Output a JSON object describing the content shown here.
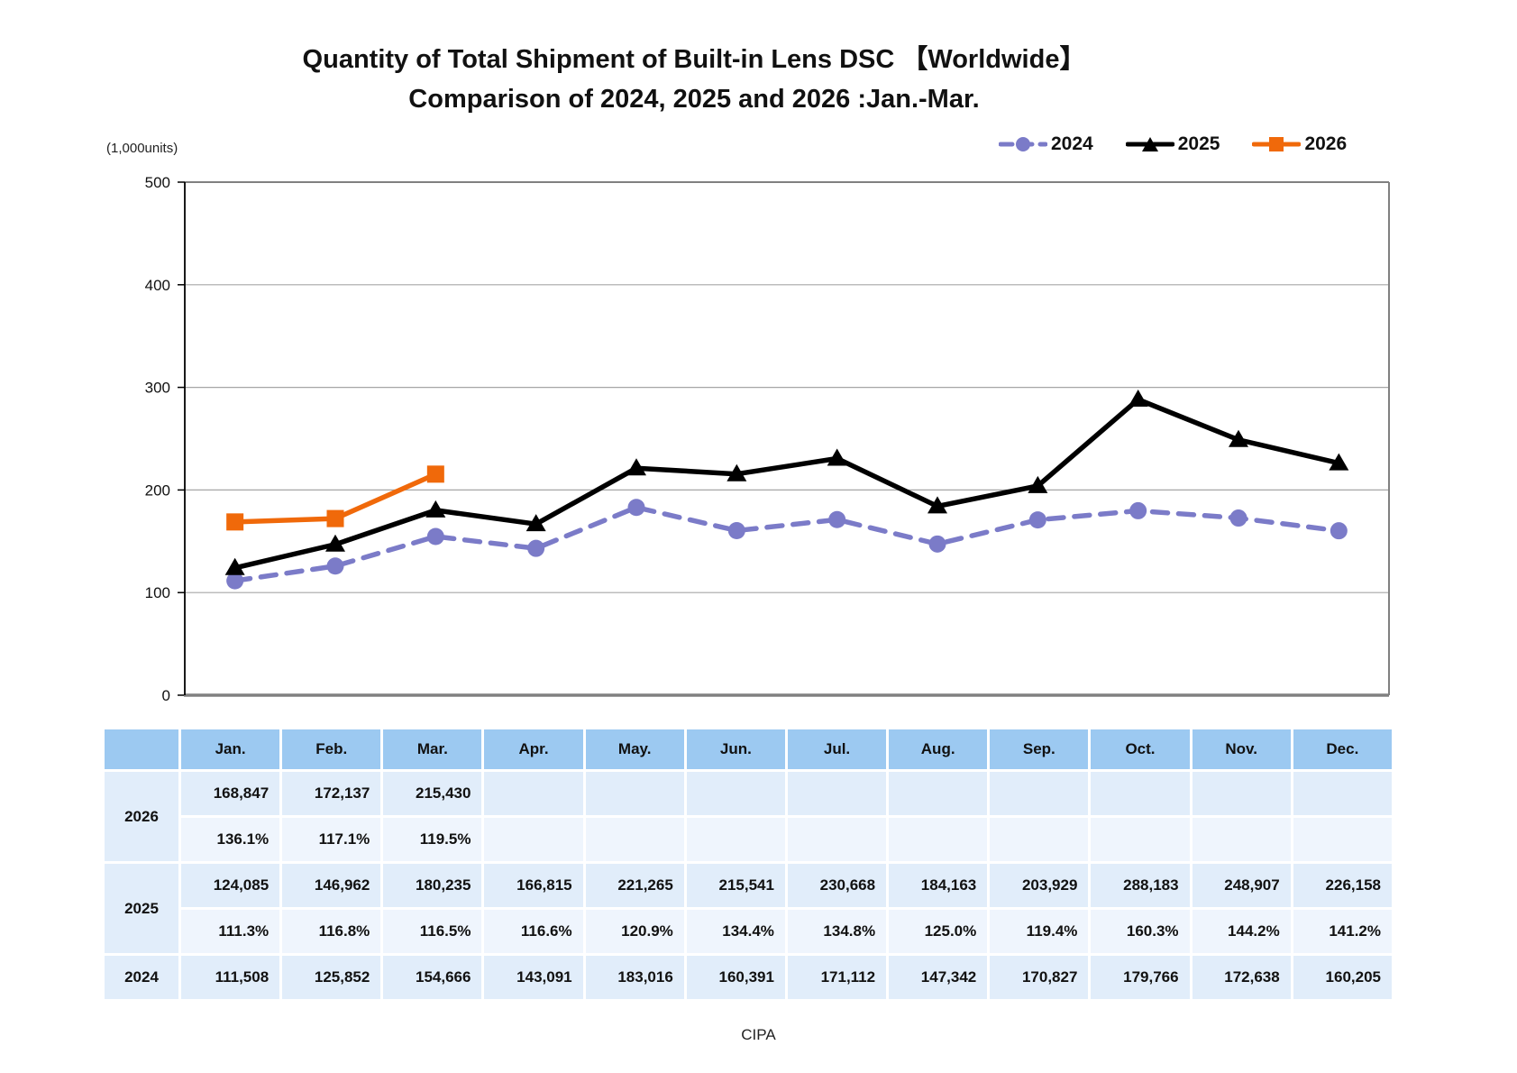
{
  "title": {
    "line1": "Quantity of Total Shipment of Built-in Lens DSC 【Worldwide】",
    "line2": "Comparison of 2024, 2025 and 2026 :Jan.-Mar."
  },
  "footer": {
    "source": "CIPA"
  },
  "legend": [
    {
      "label": "2024",
      "color": "#7B7BC8",
      "marker": "circle",
      "dash": true
    },
    {
      "label": "2025",
      "color": "#000000",
      "marker": "triangle",
      "dash": false
    },
    {
      "label": "2026",
      "color": "#F0690A",
      "marker": "square",
      "dash": false
    }
  ],
  "chart_data": {
    "type": "line",
    "title": "Quantity of Total Shipment of Built-in Lens DSC 【Worldwide】 Comparison of 2024, 2025 and 2026 :Jan.-Mar.",
    "unit_label": "(1,000units)",
    "categories": [
      "Jan.",
      "Feb.",
      "Mar.",
      "Apr.",
      "May.",
      "Jun.",
      "Jul.",
      "Aug.",
      "Sep.",
      "Oct.",
      "Nov.",
      "Dec."
    ],
    "ylabel": "(1,000units)",
    "ylim": [
      0,
      500
    ],
    "yticks": [
      0,
      100,
      200,
      300,
      400,
      500
    ],
    "grid": true,
    "legend_position": "top-right",
    "series": [
      {
        "name": "2024",
        "color": "#7B7BC8",
        "marker": "circle",
        "dash": true,
        "values": [
          111.508,
          125.852,
          154.666,
          143.091,
          183.016,
          160.391,
          171.112,
          147.342,
          170.827,
          179.766,
          172.638,
          160.205
        ]
      },
      {
        "name": "2025",
        "color": "#000000",
        "marker": "triangle",
        "dash": false,
        "values": [
          124.085,
          146.962,
          180.235,
          166.815,
          221.265,
          215.541,
          230.668,
          184.163,
          203.929,
          288.183,
          248.907,
          226.158
        ]
      },
      {
        "name": "2026",
        "color": "#F0690A",
        "marker": "square",
        "dash": false,
        "values": [
          168.847,
          172.137,
          215.43,
          null,
          null,
          null,
          null,
          null,
          null,
          null,
          null,
          null
        ]
      }
    ]
  },
  "table": {
    "months": [
      "Jan.",
      "Feb.",
      "Mar.",
      "Apr.",
      "May.",
      "Jun.",
      "Jul.",
      "Aug.",
      "Sep.",
      "Oct.",
      "Nov.",
      "Dec."
    ],
    "groups": [
      {
        "year": "2026",
        "values": [
          "168,847",
          "172,137",
          "215,430",
          "",
          "",
          "",
          "",
          "",
          "",
          "",
          "",
          ""
        ],
        "ratios": [
          "136.1%",
          "117.1%",
          "119.5%",
          "",
          "",
          "",
          "",
          "",
          "",
          "",
          "",
          ""
        ]
      },
      {
        "year": "2025",
        "values": [
          "124,085",
          "146,962",
          "180,235",
          "166,815",
          "221,265",
          "215,541",
          "230,668",
          "184,163",
          "203,929",
          "288,183",
          "248,907",
          "226,158"
        ],
        "ratios": [
          "111.3%",
          "116.8%",
          "116.5%",
          "116.6%",
          "120.9%",
          "134.4%",
          "134.8%",
          "125.0%",
          "119.4%",
          "160.3%",
          "144.2%",
          "141.2%"
        ]
      },
      {
        "year": "2024",
        "values": [
          "111,508",
          "125,852",
          "154,666",
          "143,091",
          "183,016",
          "160,391",
          "171,112",
          "147,342",
          "170,827",
          "179,766",
          "172,638",
          "160,205"
        ],
        "ratios": null
      }
    ]
  }
}
